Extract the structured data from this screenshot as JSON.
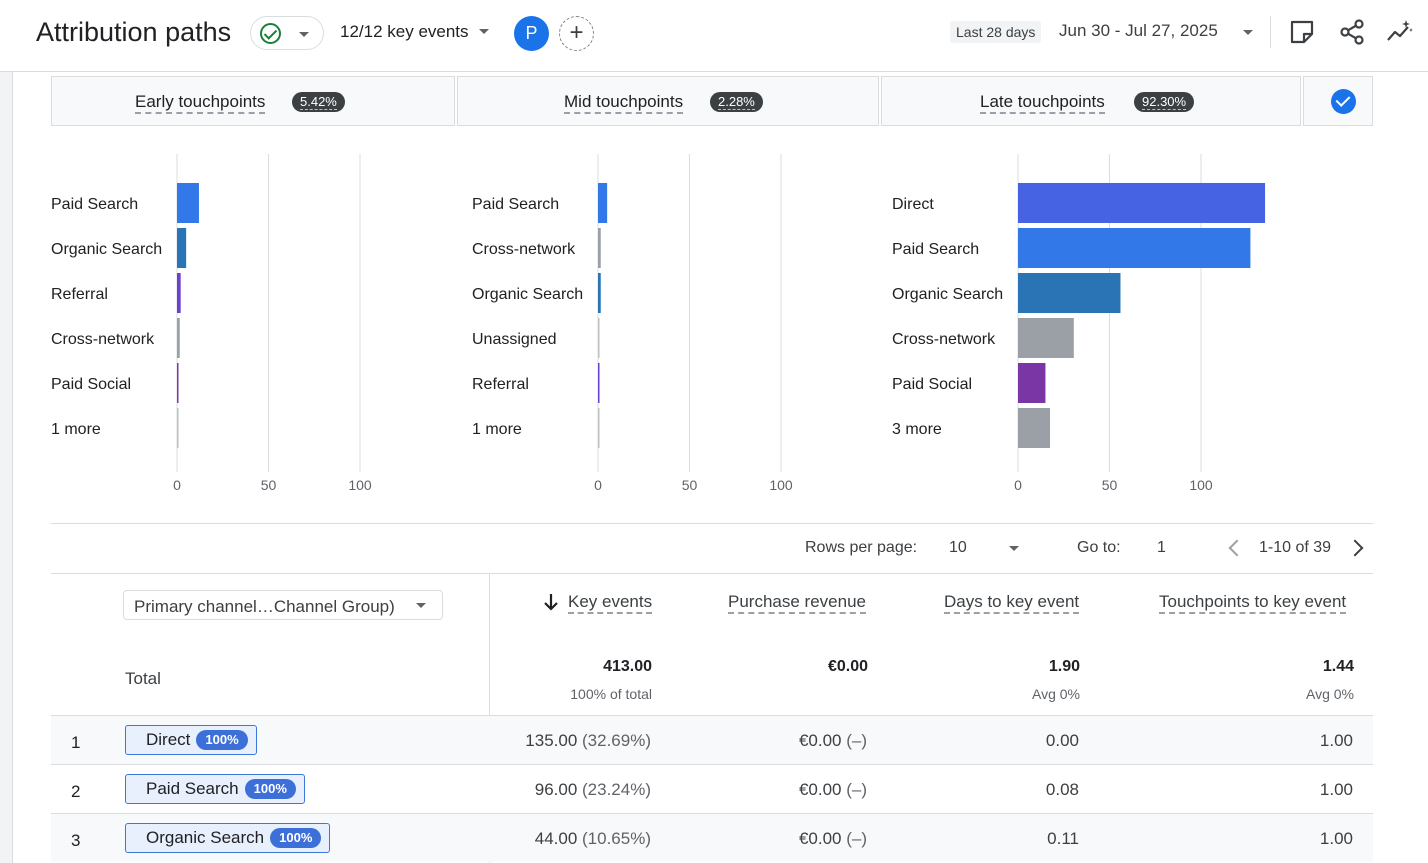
{
  "header": {
    "title": "Attribution paths",
    "key_events": "12/12 key events",
    "avatar_letter": "P",
    "date_chip": "Last 28 days",
    "date_range": "Jun 30 - Jul 27, 2025",
    "icons": [
      "check-circle-icon",
      "chevron-down-icon",
      "add-icon",
      "note-icon",
      "share-icon",
      "insights-icon"
    ]
  },
  "stages": [
    {
      "label": "Early touchpoints",
      "pct": "5.42%"
    },
    {
      "label": "Mid touchpoints",
      "pct": "2.28%"
    },
    {
      "label": "Late touchpoints",
      "pct": "92.30%"
    }
  ],
  "chart_data": [
    {
      "type": "bar",
      "orientation": "horizontal",
      "title": "",
      "categories": [
        "Paid Search",
        "Organic Search",
        "Referral",
        "Cross-network",
        "Paid Social",
        "1 more"
      ],
      "values": [
        12,
        5,
        2,
        1.5,
        0.8,
        0.5
      ],
      "colors": [
        "#3378e8",
        "#2a74b5",
        "#6c3fcf",
        "#9aa0a6",
        "#7b36a5",
        "#bdc1c6"
      ],
      "xticks": [
        "0",
        "50",
        "100"
      ],
      "xlim": [
        0,
        150
      ],
      "grid": true
    },
    {
      "type": "bar",
      "orientation": "horizontal",
      "title": "",
      "categories": [
        "Paid Search",
        "Cross-network",
        "Organic Search",
        "Unassigned",
        "Referral",
        "1 more"
      ],
      "values": [
        5,
        1.5,
        1.5,
        0.5,
        0.8,
        0.5
      ],
      "colors": [
        "#3378e8",
        "#9aa0a6",
        "#2a74b5",
        "#bdc1c6",
        "#6c3fcf",
        "#bdc1c6"
      ],
      "xticks": [
        "0",
        "50",
        "100"
      ],
      "xlim": [
        0,
        150
      ],
      "grid": true
    },
    {
      "type": "bar",
      "orientation": "horizontal",
      "title": "",
      "categories": [
        "Direct",
        "Paid Search",
        "Organic Search",
        "Cross-network",
        "Paid Social",
        "3 more"
      ],
      "values": [
        135,
        127,
        56,
        30.5,
        15,
        17.5
      ],
      "colors": [
        "#4563e3",
        "#3378e8",
        "#2a74b5",
        "#9aa0a6",
        "#7b36a5",
        "#9aa0a6"
      ],
      "xticks": [
        "0",
        "50",
        "100"
      ],
      "xlim": [
        0,
        150
      ],
      "grid": true
    }
  ],
  "pagination": {
    "rows_per_page_label": "Rows per page:",
    "rows_per_page": "10",
    "goto_label": "Go to:",
    "goto_value": "1",
    "range": "1-10 of 39"
  },
  "table": {
    "dimension": "Primary channel…Channel Group)",
    "columns": [
      "Key events",
      "Purchase revenue",
      "Days to key event",
      "Touchpoints to key event"
    ],
    "total_label": "Total",
    "totals": [
      {
        "value": "413.00",
        "sub": "100% of total"
      },
      {
        "value": "€0.00",
        "sub": ""
      },
      {
        "value": "1.90",
        "sub": "Avg 0%"
      },
      {
        "value": "1.44",
        "sub": "Avg 0%"
      }
    ],
    "rows": [
      {
        "idx": "1",
        "channel": "Direct",
        "badge": "100%",
        "key_events": "135.00",
        "key_pct": "(32.69%)",
        "revenue": "€0.00",
        "revenue_delta": "(–)",
        "days": "0.00",
        "touchpoints": "1.00"
      },
      {
        "idx": "2",
        "channel": "Paid Search",
        "badge": "100%",
        "key_events": "96.00",
        "key_pct": "(23.24%)",
        "revenue": "€0.00",
        "revenue_delta": "(–)",
        "days": "0.08",
        "touchpoints": "1.00"
      },
      {
        "idx": "3",
        "channel": "Organic Search",
        "badge": "100%",
        "key_events": "44.00",
        "key_pct": "(10.65%)",
        "revenue": "€0.00",
        "revenue_delta": "(–)",
        "days": "0.11",
        "touchpoints": "1.00"
      }
    ]
  }
}
